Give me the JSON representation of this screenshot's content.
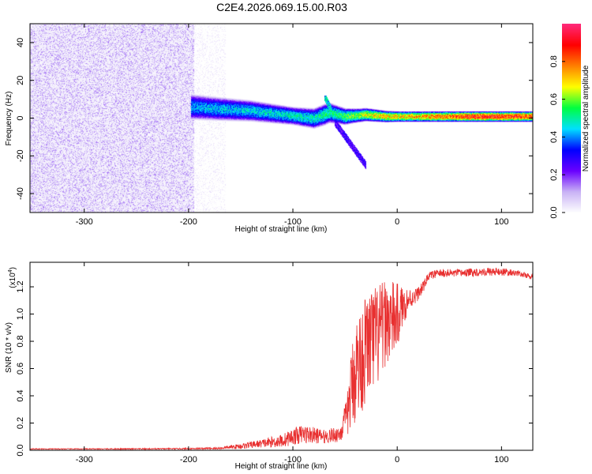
{
  "title": "C2E4.2026.069.15.00.R03",
  "chart_data": [
    {
      "type": "heatmap",
      "xlabel": "Height of straight line (km)",
      "ylabel": "Frequency (Hz)",
      "xlim": [
        -352,
        130
      ],
      "ylim": [
        -50,
        50
      ],
      "xticks": [
        -300,
        -200,
        -100,
        0,
        100
      ],
      "xtick_labels": [
        "-300",
        "-200",
        "-100",
        "0",
        "100"
      ],
      "yticks": [
        -40,
        -20,
        0,
        20,
        40
      ],
      "ytick_labels": [
        "-40",
        "-20",
        "0",
        "20",
        "40"
      ],
      "colorbar": {
        "label": "Normalized spectral amplitude",
        "range": [
          0,
          1
        ],
        "ticks": [
          0.0,
          0.2,
          0.4,
          0.6,
          0.8
        ],
        "tick_labels": [
          "0.0",
          "0.2",
          "0.4",
          "0.6",
          "0.8"
        ],
        "colors": [
          "#ffffff",
          "#c9b3f5",
          "#6a00ff",
          "#0000ff",
          "#00e0ff",
          "#00ff40",
          "#ffff00",
          "#ff8000",
          "#ff0000",
          "#ff2a7a"
        ]
      },
      "regions": [
        {
          "name": "broadband noise",
          "x_range": [
            -352,
            -195
          ],
          "y_range": [
            -50,
            50
          ],
          "amplitude": 0.12
        },
        {
          "name": "noise fade",
          "x_range": [
            -195,
            -165
          ],
          "y_range": [
            -50,
            50
          ],
          "amplitude": 0.04
        }
      ],
      "band": {
        "center": [
          [
            -195,
            6
          ],
          [
            -170,
            5
          ],
          [
            -140,
            4
          ],
          [
            -110,
            2
          ],
          [
            -80,
            0
          ],
          [
            -65,
            3
          ],
          [
            -50,
            1
          ],
          [
            -30,
            2
          ],
          [
            -10,
            1
          ],
          [
            0,
            1
          ],
          [
            30,
            1
          ],
          [
            60,
            1
          ],
          [
            90,
            1
          ],
          [
            130,
            1
          ]
        ],
        "half_width": [
          [
            -195,
            7
          ],
          [
            -100,
            5
          ],
          [
            -70,
            6
          ],
          [
            -40,
            4
          ],
          [
            0,
            3
          ],
          [
            130,
            3
          ]
        ],
        "peak_amplitude": [
          [
            -195,
            0.45
          ],
          [
            -120,
            0.5
          ],
          [
            -60,
            0.55
          ],
          [
            -20,
            0.75
          ],
          [
            20,
            0.8
          ],
          [
            80,
            0.95
          ],
          [
            130,
            0.9
          ]
        ]
      },
      "annotations": [
        {
          "text": "spur",
          "x_range": [
            -70,
            -60
          ],
          "y_range": [
            0,
            12
          ]
        },
        {
          "text": "downward tail",
          "x_range": [
            -60,
            -30
          ],
          "y_range": [
            -25,
            -2
          ]
        }
      ]
    },
    {
      "type": "line",
      "xlabel": "Height of straight line (km)",
      "ylabel": "SNR (10 * v/v)",
      "y_multiplier_label": "(x10",
      "y_multiplier_exponent": "4",
      "xlim": [
        -352,
        130
      ],
      "ylim": [
        0,
        1.38
      ],
      "xticks": [
        -300,
        -200,
        -100,
        0,
        100
      ],
      "xtick_labels": [
        "-300",
        "-200",
        "-100",
        "0",
        "100"
      ],
      "yticks": [
        0.0,
        0.2,
        0.4,
        0.6,
        0.8,
        1.0,
        1.2
      ],
      "ytick_labels": [
        "0.0",
        "0.2",
        "0.4",
        "0.6",
        "0.8",
        "1.0",
        "1.2"
      ],
      "color": "#e83030",
      "series": [
        {
          "name": "SNR",
          "x": [
            -350,
            -300,
            -250,
            -200,
            -170,
            -150,
            -130,
            -110,
            -100,
            -90,
            -70,
            -55,
            -48,
            -44,
            -40,
            -35,
            -30,
            -25,
            -20,
            -15,
            -10,
            -5,
            0,
            5,
            10,
            15,
            20,
            25,
            30,
            40,
            60,
            80,
            100,
            115,
            130
          ],
          "y": [
            0.01,
            0.01,
            0.01,
            0.012,
            0.015,
            0.03,
            0.05,
            0.07,
            0.1,
            0.12,
            0.1,
            0.12,
            0.25,
            0.45,
            0.6,
            0.65,
            0.75,
            0.8,
            0.82,
            0.88,
            0.95,
            0.95,
            0.98,
            1.05,
            1.1,
            1.12,
            1.15,
            1.2,
            1.28,
            1.3,
            1.3,
            1.31,
            1.31,
            1.3,
            1.27
          ],
          "noise_amplitude": [
            0.003,
            0.003,
            0.004,
            0.005,
            0.008,
            0.02,
            0.03,
            0.05,
            0.06,
            0.07,
            0.05,
            0.06,
            0.15,
            0.3,
            0.4,
            0.4,
            0.4,
            0.4,
            0.4,
            0.35,
            0.3,
            0.3,
            0.25,
            0.15,
            0.1,
            0.06,
            0.05,
            0.04,
            0.03,
            0.03,
            0.03,
            0.03,
            0.03,
            0.02,
            0.02
          ]
        }
      ]
    }
  ]
}
